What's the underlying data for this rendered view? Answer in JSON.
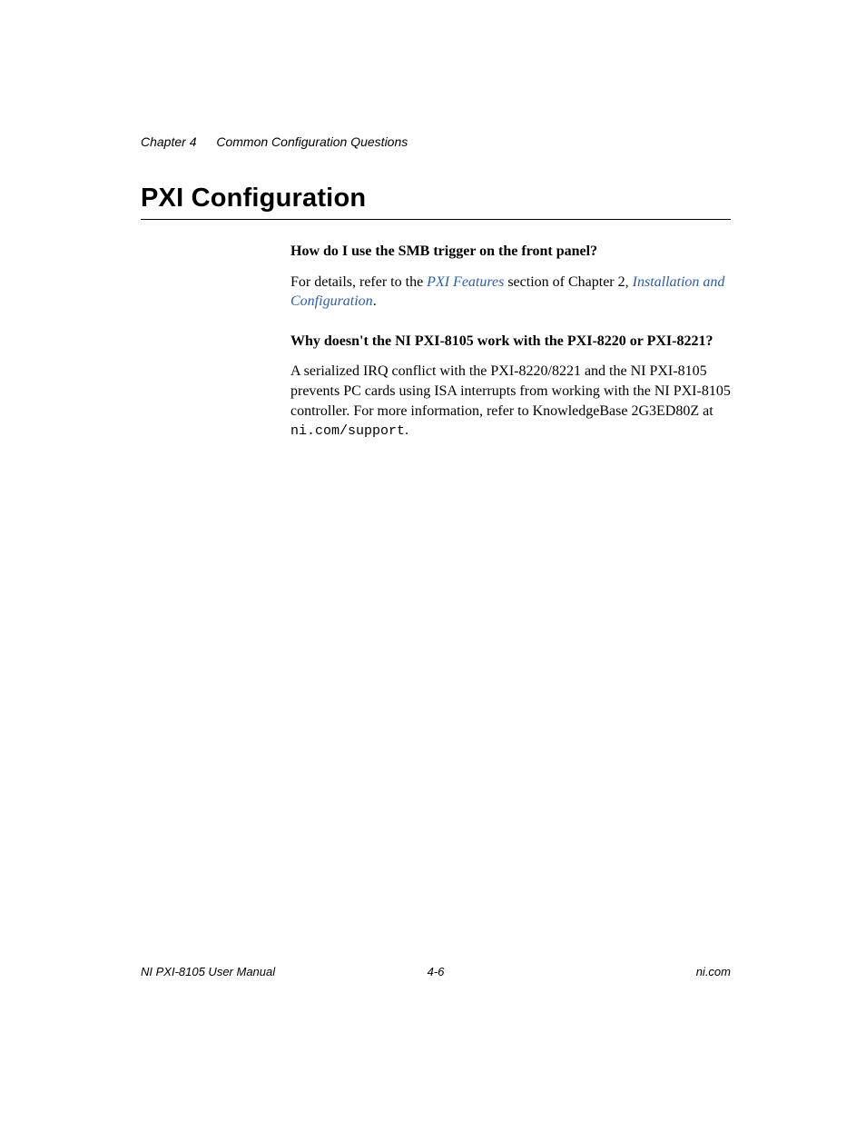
{
  "header": {
    "chapter": "Chapter 4",
    "title": "Common Configuration Questions"
  },
  "section": {
    "title": "PXI Configuration"
  },
  "content": {
    "q1": "How do I use the SMB trigger on the front panel?",
    "p1_a": "For details, refer to the ",
    "p1_link1": "PXI Features",
    "p1_b": " section of Chapter 2, ",
    "p1_link2": "Installation and Configuration",
    "p1_c": ".",
    "q2": "Why doesn't the NI PXI-8105 work with the PXI-8220 or PXI-8221?",
    "p2_a": "A serialized IRQ conflict with the PXI-8220/8221 and the NI PXI-8105 prevents PC cards using ISA interrupts from working with the NI PXI-8105 controller. For more information, refer to KnowledgeBase 2G3ED80Z at ",
    "p2_mono": "ni.com/support",
    "p2_b": "."
  },
  "footer": {
    "left": "NI PXI-8105 User Manual",
    "center": "4-6",
    "right": "ni.com"
  },
  "colors": {
    "text": "#000000",
    "link": "#2a5db0",
    "background": "#ffffff"
  },
  "typography": {
    "body_font": "Times New Roman",
    "heading_font": "Arial",
    "mono_font": "Courier New",
    "section_title_size_pt": 22,
    "body_size_pt": 12,
    "header_size_pt": 10,
    "footer_size_pt": 10
  }
}
